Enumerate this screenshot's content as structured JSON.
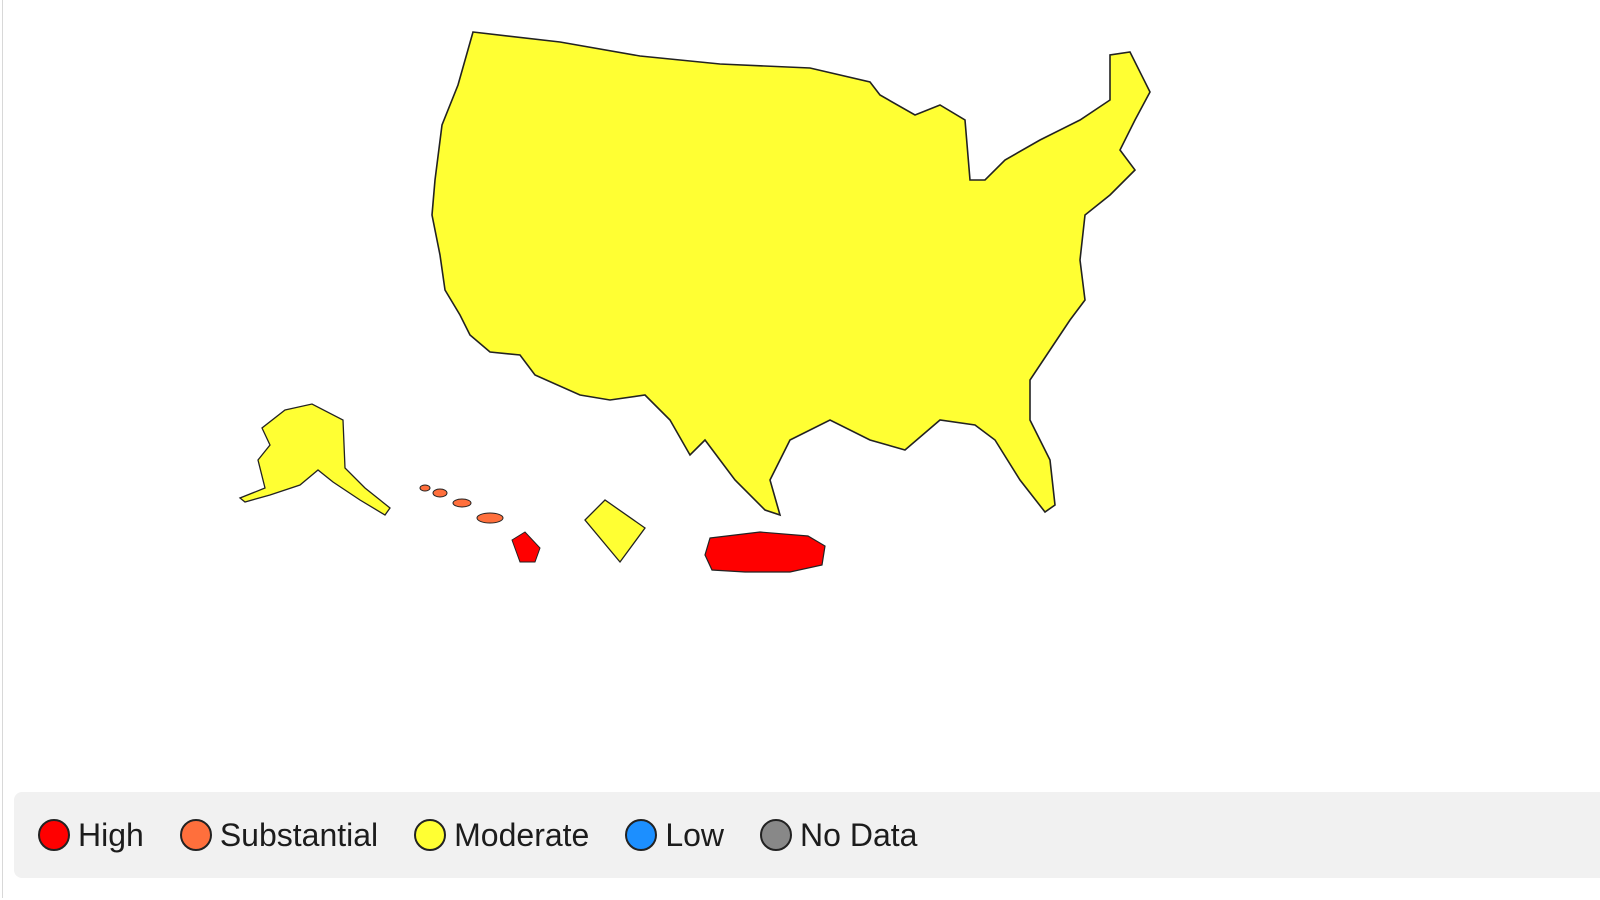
{
  "legend": {
    "items": [
      {
        "key": "high",
        "label": "High",
        "color": "#ff0000"
      },
      {
        "key": "substantial",
        "label": "Substantial",
        "color": "#ff6f3c"
      },
      {
        "key": "moderate",
        "label": "Moderate",
        "color": "#ffff33"
      },
      {
        "key": "low",
        "label": "Low",
        "color": "#1c8fff"
      },
      {
        "key": "nodata",
        "label": "No Data",
        "color": "#888888"
      }
    ]
  },
  "colors": {
    "high": "#ff0000",
    "substantial": "#ff6f3c",
    "moderate": "#ffff33",
    "low": "#1c8fff",
    "nodata": "#888888",
    "outline": "#222222"
  }
}
